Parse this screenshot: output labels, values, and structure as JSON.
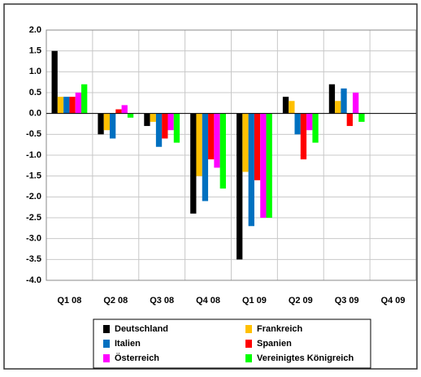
{
  "chart_data": {
    "type": "bar",
    "categories": [
      "Q1 08",
      "Q2 08",
      "Q3 08",
      "Q4 08",
      "Q1 09",
      "Q2 09",
      "Q3 09",
      "Q4 09"
    ],
    "series": [
      {
        "name": "Deutschland",
        "color": "#000000",
        "values": [
          1.5,
          -0.5,
          -0.3,
          -2.4,
          -3.5,
          0.4,
          0.7,
          null
        ]
      },
      {
        "name": "Frankreich",
        "color": "#ffc000",
        "values": [
          0.4,
          -0.4,
          -0.2,
          -1.5,
          -1.4,
          0.3,
          0.3,
          null
        ]
      },
      {
        "name": "Italien",
        "color": "#0070c0",
        "values": [
          0.4,
          -0.6,
          -0.8,
          -2.1,
          -2.7,
          -0.5,
          0.6,
          null
        ]
      },
      {
        "name": "Spanien",
        "color": "#ff0000",
        "values": [
          0.4,
          0.1,
          -0.6,
          -1.1,
          -1.6,
          -1.1,
          -0.3,
          null
        ]
      },
      {
        "name": "Österreich",
        "color": "#ff00ff",
        "values": [
          0.5,
          0.2,
          -0.4,
          -1.3,
          -2.5,
          -0.4,
          0.5,
          null
        ]
      },
      {
        "name": "Vereinigtes Königreich",
        "color": "#00ff00",
        "values": [
          0.7,
          -0.1,
          -0.7,
          -1.8,
          -2.5,
          -0.7,
          -0.2,
          null
        ]
      }
    ],
    "ylim": [
      -4,
      2
    ],
    "yticks": [
      {
        "value": -4,
        "label": "-4.0"
      },
      {
        "value": -3.5,
        "label": "-3.5"
      },
      {
        "value": -3,
        "label": "-3.0"
      },
      {
        "value": -2.5,
        "label": "-2.5"
      },
      {
        "value": -2,
        "label": "-2.0"
      },
      {
        "value": -1.5,
        "label": "-1.5"
      },
      {
        "value": -1,
        "label": "-1.0"
      },
      {
        "value": -0.5,
        "label": "-0.5"
      },
      {
        "value": 0,
        "label": "0.0"
      },
      {
        "value": 0.5,
        "label": "0.5"
      },
      {
        "value": 1,
        "label": "1.0"
      },
      {
        "value": 1.5,
        "label": "1.5"
      },
      {
        "value": 2,
        "label": "2.0"
      }
    ],
    "grid": true,
    "legend": "bottom"
  }
}
